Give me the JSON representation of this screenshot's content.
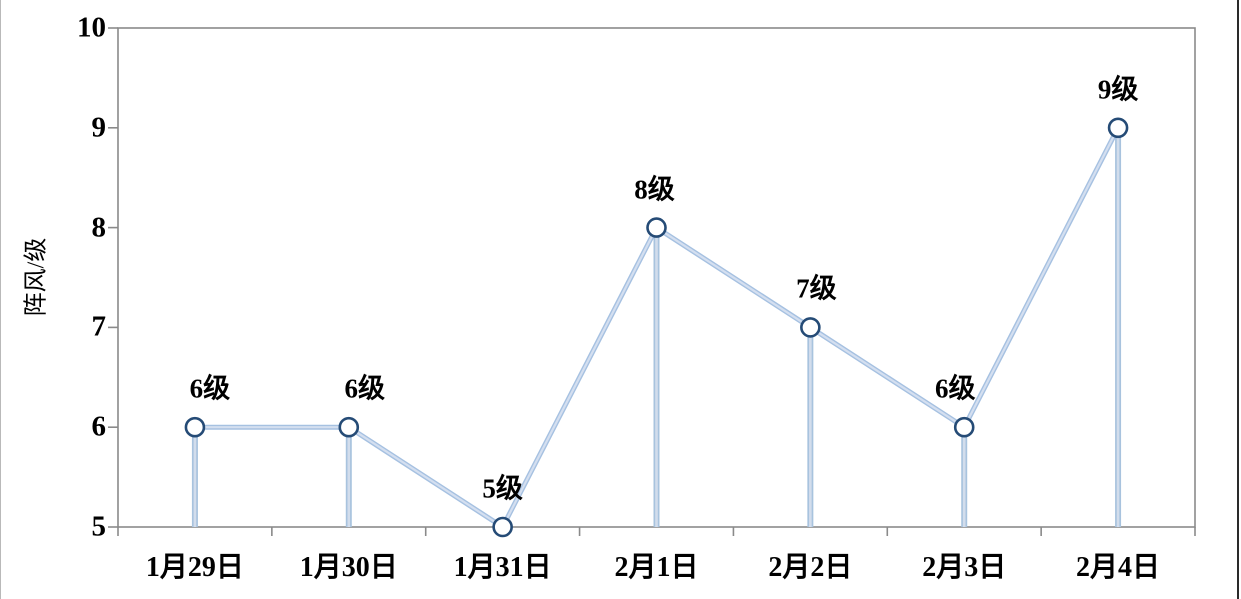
{
  "chart_data": {
    "type": "line",
    "categories": [
      "1月29日",
      "1月30日",
      "1月31日",
      "2月1日",
      "2月2日",
      "2月3日",
      "2月4日"
    ],
    "values": [
      6,
      6,
      5,
      8,
      7,
      6,
      9
    ],
    "data_labels": [
      "6级",
      "6级",
      "5级",
      "8级",
      "7级",
      "6级",
      "9级"
    ],
    "title": "",
    "xlabel": "",
    "ylabel": "阵风/级",
    "ylim": [
      5,
      10
    ],
    "yticks": [
      10,
      9,
      8,
      7,
      6,
      5
    ],
    "grid": "off",
    "legend": "none",
    "marker": "open-circle",
    "drop_lines": "on",
    "colors": {
      "line_edge": "#a6c1e1",
      "line_core": "#d4dff0",
      "drop_edge": "#a8c3de",
      "drop_core": "#d2ddec",
      "marker_ring": "#254b76",
      "marker_fill": "#ffffff",
      "axis": "#8a8a8a",
      "text": "#000000"
    }
  }
}
